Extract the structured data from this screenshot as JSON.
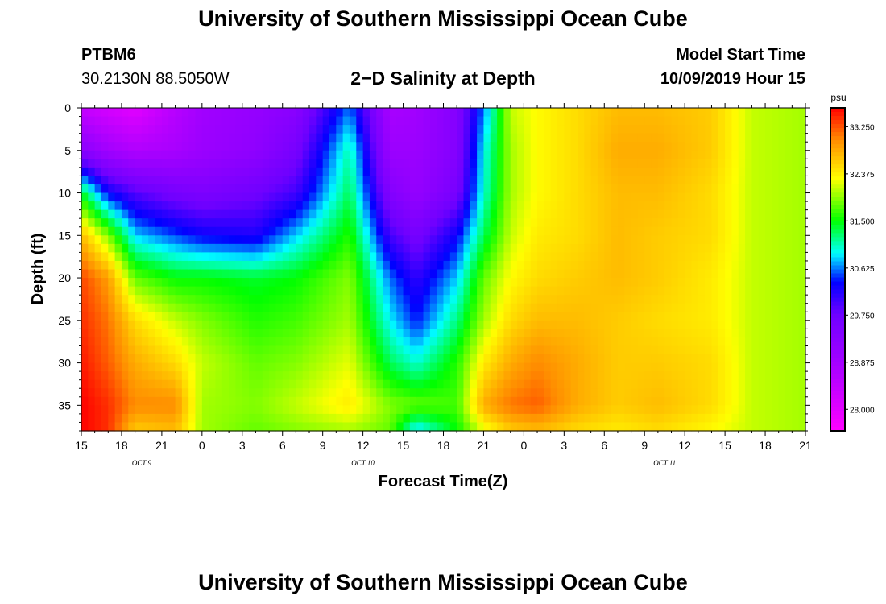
{
  "page": {
    "title_top": "University of Southern Mississippi Ocean Cube",
    "title_bottom": "University of Southern Mississippi Ocean Cube",
    "station_id": "PTBM6",
    "station_coords": "30.2130N 88.5050W",
    "model_start_label": "Model Start Time",
    "model_start_value": "10/09/2019 Hour 15"
  },
  "chart_data": {
    "type": "heatmap",
    "title": "2−D Salinity at Depth",
    "xlabel": "Forecast Time(Z)",
    "ylabel": "Depth (ft)",
    "x_unit": "hours since model start",
    "x_range": [
      0,
      54
    ],
    "y_range": [
      0,
      38
    ],
    "x_ticks": [
      "15",
      "18",
      "21",
      "0",
      "3",
      "6",
      "9",
      "12",
      "15",
      "18",
      "21",
      "0",
      "3",
      "6",
      "9",
      "12",
      "15",
      "18",
      "21"
    ],
    "y_ticks": [
      "0",
      "5",
      "10",
      "15",
      "20",
      "25",
      "30",
      "35"
    ],
    "day_labels": [
      {
        "label": "OCT 9",
        "hour": 4.5
      },
      {
        "label": "OCT 10",
        "hour": 21
      },
      {
        "label": "OCT 11",
        "hour": 43.5
      }
    ],
    "colorbar": {
      "unit": "psu",
      "ticks": [
        "33.250",
        "32.375",
        "31.500",
        "30.625",
        "29.750",
        "28.875",
        "28.000"
      ],
      "range": [
        27.6,
        33.6
      ]
    },
    "salinity_profiles": {
      "depths_ft": [
        0,
        5,
        10,
        15,
        20,
        25,
        30,
        35,
        38
      ],
      "columns": [
        {
          "hour": 0,
          "values": [
            28.4,
            29.3,
            31.4,
            32.7,
            33.3,
            33.4,
            33.5,
            33.6,
            33.6
          ]
        },
        {
          "hour": 2,
          "values": [
            28.2,
            28.9,
            30.3,
            31.9,
            32.9,
            33.1,
            33.2,
            33.4,
            33.4
          ]
        },
        {
          "hour": 4,
          "values": [
            28.0,
            28.7,
            29.9,
            30.8,
            31.8,
            32.5,
            32.8,
            33.0,
            32.6
          ]
        },
        {
          "hour": 7,
          "values": [
            28.6,
            28.8,
            29.6,
            30.5,
            31.5,
            32.1,
            32.5,
            33.0,
            32.7
          ]
        },
        {
          "hour": 9,
          "values": [
            28.9,
            29.0,
            29.5,
            30.3,
            31.5,
            31.9,
            32.1,
            32.0,
            32.0
          ]
        },
        {
          "hour": 13,
          "values": [
            29.1,
            29.2,
            29.7,
            30.2,
            31.4,
            31.6,
            31.8,
            31.9,
            31.8
          ]
        },
        {
          "hour": 16,
          "values": [
            29.3,
            29.6,
            30.0,
            30.8,
            31.5,
            31.7,
            31.9,
            32.1,
            31.9
          ]
        },
        {
          "hour": 20,
          "values": [
            30.6,
            31.1,
            31.3,
            31.6,
            31.9,
            32.0,
            32.2,
            32.4,
            32.0
          ]
        },
        {
          "hour": 23,
          "values": [
            28.8,
            29.0,
            29.4,
            30.0,
            30.6,
            30.9,
            31.3,
            31.9,
            31.8
          ]
        },
        {
          "hour": 25,
          "values": [
            28.9,
            29.0,
            29.1,
            29.6,
            30.1,
            30.4,
            31.0,
            31.8,
            30.8
          ]
        },
        {
          "hour": 28,
          "values": [
            29.4,
            29.4,
            29.6,
            30.3,
            30.8,
            31.2,
            31.6,
            31.7,
            31.5
          ]
        },
        {
          "hour": 30,
          "values": [
            30.6,
            30.9,
            31.0,
            31.3,
            31.8,
            32.0,
            32.4,
            32.8,
            32.2
          ]
        },
        {
          "hour": 32,
          "values": [
            32.1,
            32.0,
            32.0,
            32.1,
            32.3,
            32.5,
            32.8,
            33.1,
            32.6
          ]
        },
        {
          "hour": 34,
          "values": [
            32.3,
            32.3,
            32.3,
            32.4,
            32.5,
            32.7,
            33.0,
            33.2,
            32.7
          ]
        },
        {
          "hour": 37,
          "values": [
            32.5,
            32.5,
            32.5,
            32.5,
            32.6,
            32.7,
            32.8,
            32.8,
            32.5
          ]
        },
        {
          "hour": 40,
          "values": [
            32.7,
            32.8,
            32.7,
            32.7,
            32.7,
            32.6,
            32.6,
            32.6,
            32.4
          ]
        },
        {
          "hour": 43,
          "values": [
            32.7,
            32.8,
            32.7,
            32.6,
            32.6,
            32.5,
            32.6,
            32.7,
            32.5
          ]
        },
        {
          "hour": 47,
          "values": [
            32.6,
            32.6,
            32.5,
            32.5,
            32.4,
            32.4,
            32.5,
            32.5,
            32.3
          ]
        },
        {
          "hour": 50,
          "values": [
            32.1,
            32.1,
            32.1,
            32.1,
            32.1,
            32.1,
            32.1,
            32.1,
            32.1
          ]
        },
        {
          "hour": 54,
          "values": [
            32.0,
            32.0,
            32.0,
            32.0,
            32.0,
            32.0,
            32.0,
            32.0,
            32.0
          ]
        }
      ]
    },
    "grid": false,
    "legend": "right colorbar"
  }
}
